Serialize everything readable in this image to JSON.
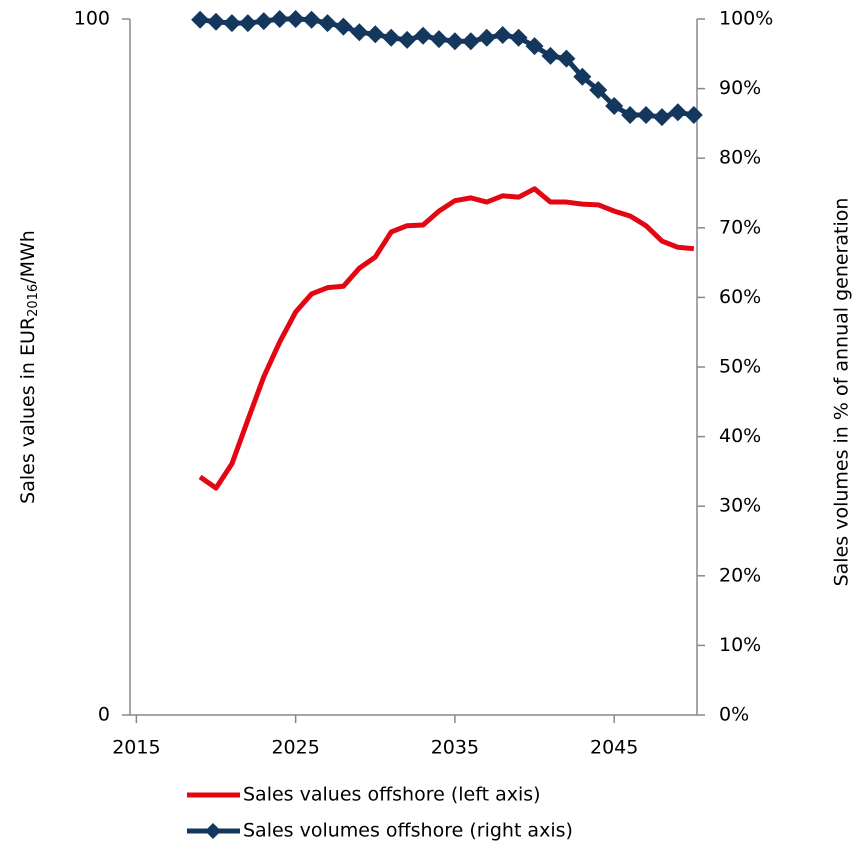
{
  "chart_data": {
    "type": "line",
    "y_label_parts": [
      "Sales values in EUR",
      "2016",
      "/MWh"
    ],
    "y2_label": "Sales volumes in % of annual generation",
    "x": [
      2019,
      2020,
      2021,
      2022,
      2023,
      2024,
      2025,
      2026,
      2027,
      2028,
      2029,
      2030,
      2031,
      2032,
      2033,
      2034,
      2035,
      2036,
      2037,
      2038,
      2039,
      2040,
      2041,
      2042,
      2043,
      2044,
      2045,
      2046,
      2047,
      2048,
      2049,
      2050
    ],
    "series": [
      {
        "name": "Sales values offshore (left axis)",
        "color": "#e30613",
        "marker": false,
        "values": [
          34.2,
          32.6,
          36.1,
          42.4,
          48.6,
          53.6,
          57.9,
          60.5,
          61.4,
          61.6,
          64.2,
          65.8,
          69.4,
          70.3,
          70.4,
          72.4,
          73.9,
          74.3,
          73.7,
          74.6,
          74.4,
          75.6,
          73.7,
          73.7,
          73.4,
          73.3,
          72.4,
          71.7,
          70.3,
          68.1,
          67.2,
          67.0
        ]
      },
      {
        "name": "Sales volumes offshore (right axis)",
        "color": "#14375e",
        "marker": true,
        "axis": "y2",
        "values": [
          99.9,
          99.6,
          99.4,
          99.4,
          99.7,
          100,
          100,
          99.9,
          99.4,
          98.9,
          98.1,
          97.8,
          97.3,
          97.0,
          97.6,
          97.1,
          96.8,
          96.8,
          97.3,
          97.7,
          97.3,
          96.1,
          94.7,
          94.3,
          91.7,
          89.8,
          87.5,
          86.2,
          86.2,
          85.9,
          86.6,
          86.2
        ]
      }
    ],
    "xlim": [
      2014.6,
      2050.2
    ],
    "xticks": [
      2015,
      2025,
      2035,
      2045
    ],
    "ylim": [
      0,
      100
    ],
    "yticks": [
      0,
      100
    ],
    "y2lim": [
      0,
      100
    ],
    "y2ticks": [
      {
        "value": 0,
        "label": "0%"
      },
      {
        "value": 10,
        "label": "10%"
      },
      {
        "value": 20,
        "label": "20%"
      },
      {
        "value": 30,
        "label": "30%"
      },
      {
        "value": 40,
        "label": "40%"
      },
      {
        "value": 50,
        "label": "50%"
      },
      {
        "value": 60,
        "label": "60%"
      },
      {
        "value": 70,
        "label": "70%"
      },
      {
        "value": 80,
        "label": "80%"
      },
      {
        "value": 90,
        "label": "90%"
      },
      {
        "value": 100,
        "label": "100%"
      }
    ],
    "grid": false
  }
}
